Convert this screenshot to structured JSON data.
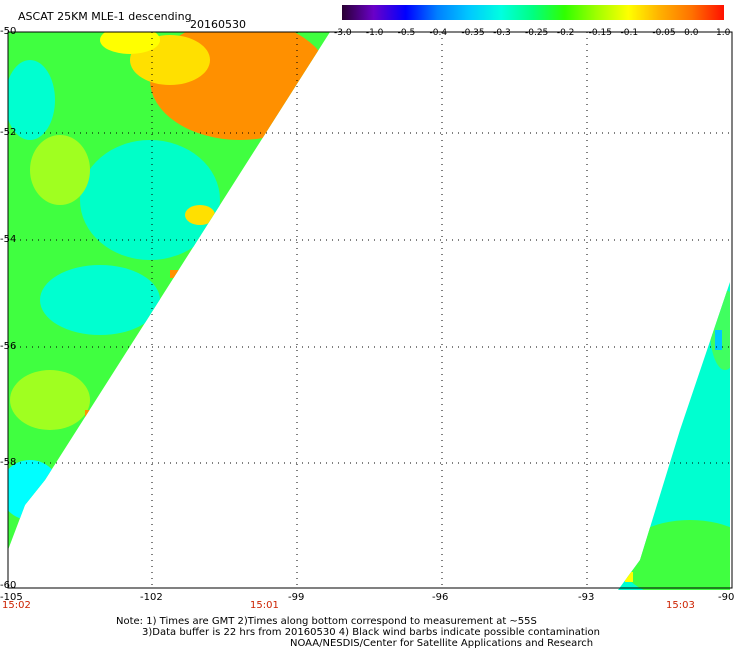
{
  "header": {
    "title": "ASCAT 25KM MLE-1 descending",
    "date": "20160530"
  },
  "colorbar": {
    "labels": [
      "-3.0",
      "-1.0",
      "-0.5",
      "-0.4",
      "-0.35",
      "-0.3",
      "-0.25",
      "-0.2",
      "-0.15",
      "-0.1",
      "-0.05",
      "0.0",
      "1.0"
    ],
    "colors": [
      "#2a0033",
      "#6a00c8",
      "#0000ff",
      "#0080ff",
      "#00c8ff",
      "#00ffe0",
      "#00ff80",
      "#30ff00",
      "#a0ff00",
      "#ffff00",
      "#ffb000",
      "#ff7000",
      "#ff1000"
    ]
  },
  "axes": {
    "x_ticks": [
      "-105",
      "-102",
      "-99",
      "-96",
      "-93",
      "-90"
    ],
    "y_ticks": [
      "-50",
      "-52",
      "-54",
      "-56",
      "-58",
      "-60"
    ]
  },
  "times": [
    "15:02",
    "15:01",
    "15:03"
  ],
  "notes": [
    "Note: 1) Times are GMT 2)Times along bottom correspond to measurement at ~55S",
    "3)Data buffer is 22 hrs from 20160530 4) Black wind barbs indicate possible contamination",
    "NOAA/NESDIS/Center for Satellite Applications and Research"
  ]
}
